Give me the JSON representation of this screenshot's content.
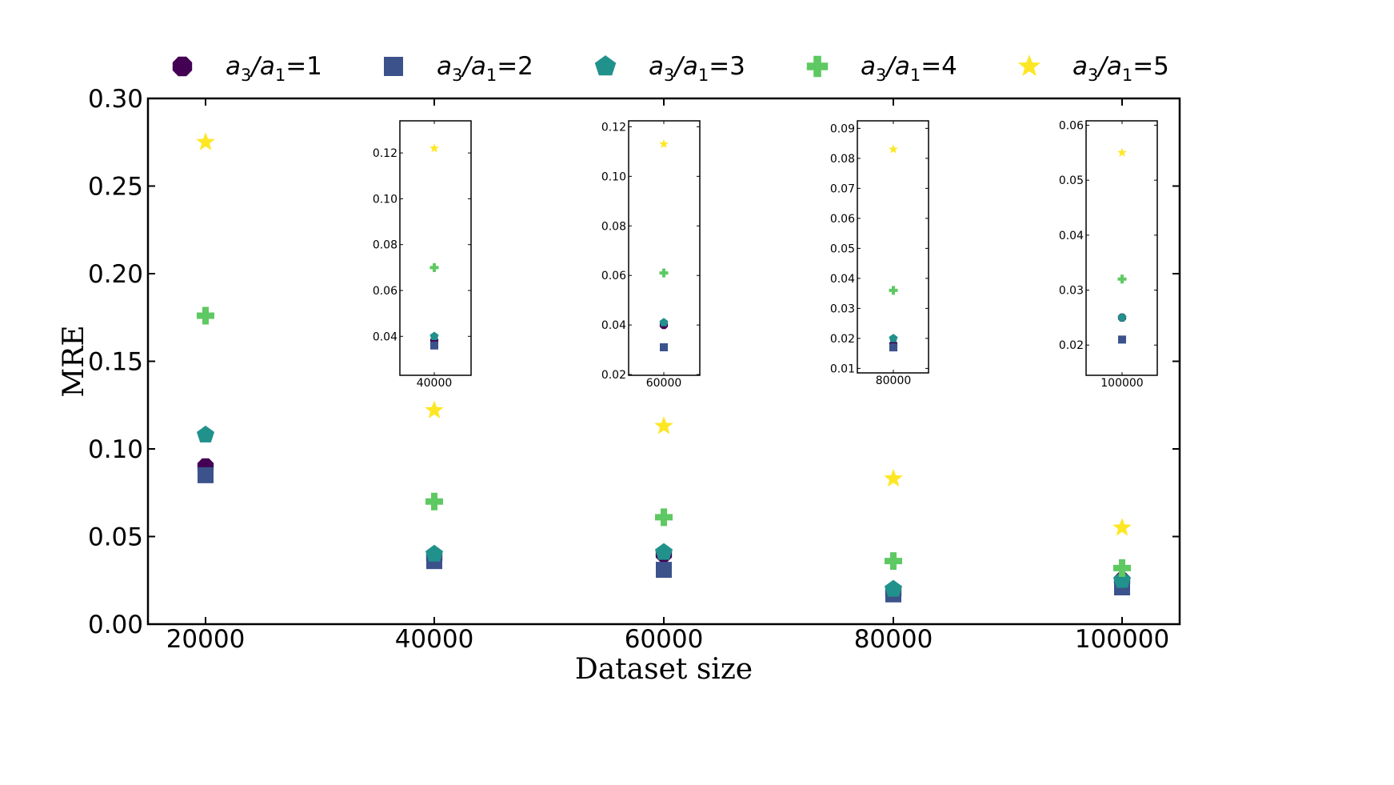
{
  "chart_data": {
    "type": "scatter",
    "xlabel": "Dataset size",
    "ylabel": "MRE",
    "x": [
      20000,
      40000,
      60000,
      80000,
      100000
    ],
    "x_tick_labels": [
      "20000",
      "40000",
      "60000",
      "80000",
      "100000"
    ],
    "ylim": [
      0,
      0.3
    ],
    "y_ticks": [
      0.0,
      0.05,
      0.1,
      0.15,
      0.2,
      0.25,
      0.3
    ],
    "y_tick_labels": [
      "0.00",
      "0.05",
      "0.10",
      "0.15",
      "0.20",
      "0.25",
      "0.30"
    ],
    "legend_position": "top",
    "series": [
      {
        "name": "a3/a1=1",
        "sub": "3",
        "sub2": "1",
        "val": "1",
        "color": "#440154",
        "marker": "octagon",
        "values": [
          0.09,
          0.038,
          0.04,
          0.018,
          0.025
        ]
      },
      {
        "name": "a3/a1=2",
        "sub": "3",
        "sub2": "1",
        "val": "2",
        "color": "#3b528b",
        "marker": "square",
        "values": [
          0.085,
          0.036,
          0.031,
          0.017,
          0.021
        ]
      },
      {
        "name": "a3/a1=3",
        "sub": "3",
        "sub2": "1",
        "val": "3",
        "color": "#21918c",
        "marker": "pentagon",
        "values": [
          0.108,
          0.04,
          0.041,
          0.02,
          0.025
        ]
      },
      {
        "name": "a3/a1=4",
        "sub": "3",
        "sub2": "1",
        "val": "4",
        "color": "#5ec962",
        "marker": "plus",
        "values": [
          0.176,
          0.07,
          0.061,
          0.036,
          0.032
        ]
      },
      {
        "name": "a3/a1=5",
        "sub": "3",
        "sub2": "1",
        "val": "5",
        "color": "#fde725",
        "marker": "star",
        "values": [
          0.275,
          0.122,
          0.113,
          0.083,
          0.055
        ]
      }
    ],
    "insets": [
      {
        "x": 40000,
        "x_label": "40000",
        "ylim": [
          0.023,
          0.134
        ],
        "y_ticks": [
          0.04,
          0.06,
          0.08,
          0.1,
          0.12
        ],
        "y_tick_labels": [
          "0.04",
          "0.06",
          "0.08",
          "0.10",
          "0.12"
        ]
      },
      {
        "x": 60000,
        "x_label": "60000",
        "ylim": [
          0.0197,
          0.1224
        ],
        "y_ticks": [
          0.02,
          0.04,
          0.06,
          0.08,
          0.1,
          0.12
        ],
        "y_tick_labels": [
          "0.02",
          "0.04",
          "0.06",
          "0.08",
          "0.10",
          "0.12"
        ]
      },
      {
        "x": 80000,
        "x_label": "80000",
        "ylim": [
          0.0085,
          0.0925
        ],
        "y_ticks": [
          0.01,
          0.02,
          0.03,
          0.04,
          0.05,
          0.06,
          0.07,
          0.08,
          0.09
        ],
        "y_tick_labels": [
          "0.01",
          "0.02",
          "0.03",
          "0.04",
          "0.05",
          "0.06",
          "0.07",
          "0.08",
          "0.09"
        ]
      },
      {
        "x": 100000,
        "x_label": "100000",
        "ylim": [
          0.0145,
          0.0608
        ],
        "y_ticks": [
          0.02,
          0.03,
          0.04,
          0.05,
          0.06
        ],
        "y_tick_labels": [
          "0.02",
          "0.03",
          "0.04",
          "0.05",
          "0.06"
        ]
      }
    ]
  }
}
